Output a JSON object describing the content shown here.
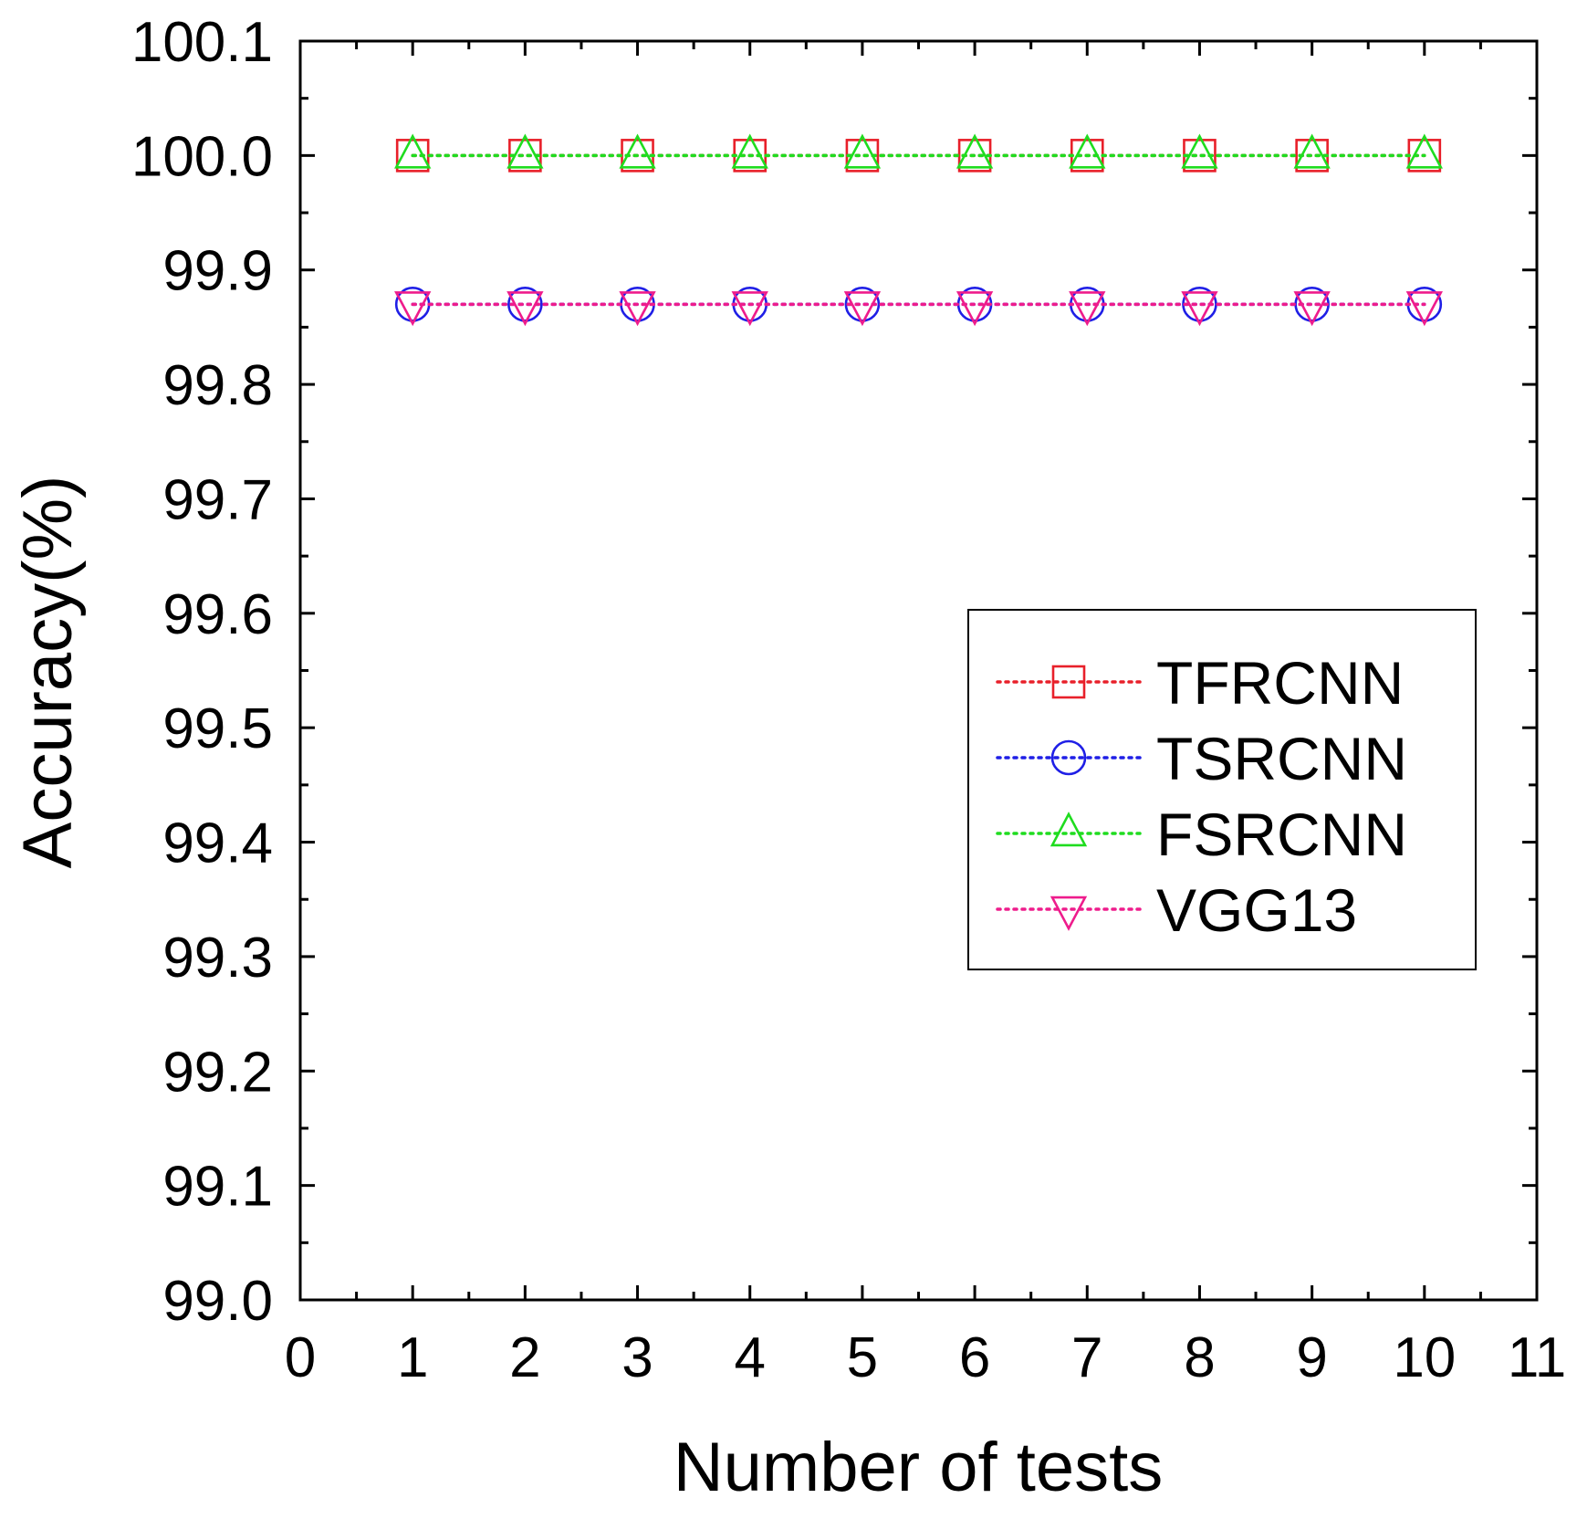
{
  "chart_data": {
    "type": "line",
    "title": "",
    "xlabel": "Number of tests",
    "ylabel": "Accuracy(%)",
    "xlim": [
      0,
      11
    ],
    "ylim": [
      99.0,
      100.1
    ],
    "xticks": [
      0,
      1,
      2,
      3,
      4,
      5,
      6,
      7,
      8,
      9,
      10,
      11
    ],
    "xtick_labels": [
      "0",
      "1",
      "2",
      "3",
      "4",
      "5",
      "6",
      "7",
      "8",
      "9",
      "10",
      "11"
    ],
    "yticks": [
      99.0,
      99.1,
      99.2,
      99.3,
      99.4,
      99.5,
      99.6,
      99.7,
      99.8,
      99.9,
      100.0,
      100.1
    ],
    "ytick_labels": [
      "99.0",
      "99.1",
      "99.2",
      "99.3",
      "99.4",
      "99.5",
      "99.6",
      "99.7",
      "99.8",
      "99.9",
      "100.0",
      "100.1"
    ],
    "grid": false,
    "legend_position": "center-right",
    "x": [
      1,
      2,
      3,
      4,
      5,
      6,
      7,
      8,
      9,
      10
    ],
    "series": [
      {
        "name": "TFRCNN",
        "color": "#e8202a",
        "marker": "square",
        "values": [
          100.0,
          100.0,
          100.0,
          100.0,
          100.0,
          100.0,
          100.0,
          100.0,
          100.0,
          100.0
        ]
      },
      {
        "name": "TSRCNN",
        "color": "#1f1fe6",
        "marker": "circle",
        "values": [
          99.87,
          99.87,
          99.87,
          99.87,
          99.87,
          99.87,
          99.87,
          99.87,
          99.87,
          99.87
        ]
      },
      {
        "name": "FSRCNN",
        "color": "#1fdc1f",
        "marker": "triangle-up",
        "values": [
          100.0,
          100.0,
          100.0,
          100.0,
          100.0,
          100.0,
          100.0,
          100.0,
          100.0,
          100.0
        ]
      },
      {
        "name": "VGG13",
        "color": "#ee1c8c",
        "marker": "triangle-down",
        "values": [
          99.87,
          99.87,
          99.87,
          99.87,
          99.87,
          99.87,
          99.87,
          99.87,
          99.87,
          99.87
        ]
      }
    ],
    "draw_order": [
      0,
      2,
      1,
      3
    ]
  }
}
